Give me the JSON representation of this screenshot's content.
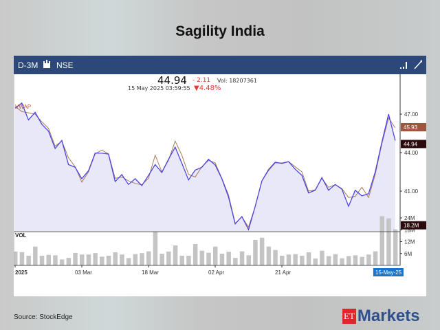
{
  "title": "Sagility India",
  "header": {
    "period": "D-3M",
    "exchange": "NSE",
    "chart_type_icon": "candlestick-icon",
    "bar_icon": "bars-icon",
    "draw_icon": "line-draw-icon"
  },
  "quote": {
    "price": "44.94",
    "change": "- 2.11",
    "volume": "Vol: 18207361",
    "datetime": "15 May 2025 03:59:55",
    "change_pct": "▼4.48%"
  },
  "source": "Source:  StockEdge",
  "logo": {
    "et": "ET",
    "markets": "Markets"
  },
  "colors": {
    "price_line": "#4a44e0",
    "vwap_line": "#a87a5a",
    "fill": "#e8e8f8",
    "header": "#2b4878",
    "vwap_tag": "#a0543c",
    "price_tag": "#2a0a0a",
    "date_tag": "#1a73c9",
    "down": "#e53935"
  },
  "chart_data": {
    "type": "line",
    "price_series": [
      {
        "name": "",
        "values": [
          47.46,
          47.86,
          46.55,
          47.14,
          46.21,
          45.68,
          44.32,
          44.95,
          43.07,
          42.86,
          41.97,
          42.59,
          43.96,
          43.96,
          43.89,
          41.75,
          42.29,
          41.52,
          41.97,
          41.43,
          42.23,
          43.07,
          42.45,
          43.48,
          44.43,
          43.18,
          41.87,
          42.64,
          42.86,
          43.48,
          43.04,
          41.97,
          40.54,
          38.45,
          39.02,
          38.0,
          39.82,
          41.79,
          42.68,
          43.25,
          43.16,
          43.3,
          42.71,
          42.23,
          40.86,
          41.07,
          42.05,
          41.07,
          41.52,
          41.16,
          39.82,
          41.07,
          40.63,
          40.8,
          42.5,
          44.82,
          47.0,
          44.94
        ]
      },
      {
        "name": "VWAP",
        "values": [
          47.6,
          47.2,
          47.1,
          47.0,
          46.4,
          45.9,
          44.5,
          44.9,
          43.6,
          42.9,
          41.7,
          42.5,
          43.9,
          44.2,
          43.9,
          42.0,
          42.1,
          41.8,
          41.6,
          41.5,
          42.0,
          43.8,
          42.5,
          43.4,
          44.9,
          43.8,
          42.3,
          42.1,
          42.9,
          43.4,
          43.2,
          42.0,
          40.7,
          38.5,
          39.0,
          38.2,
          39.8,
          41.8,
          42.6,
          43.2,
          43.2,
          43.3,
          42.9,
          42.5,
          41.0,
          41.1,
          42.0,
          41.3,
          41.5,
          41.2,
          40.5,
          40.6,
          41.3,
          40.5,
          42.3,
          44.7,
          46.7,
          45.93
        ]
      }
    ],
    "volume": {
      "label": "VOL",
      "unit": "M",
      "values": [
        7,
        6.7,
        4.9,
        9.5,
        4.9,
        5.3,
        5.1,
        3,
        3.8,
        6.3,
        5.5,
        5.5,
        6.2,
        4.4,
        4.9,
        6.6,
        5.5,
        3.7,
        5.7,
        6.2,
        7.1,
        17,
        5.9,
        7,
        10.1,
        4.9,
        4.9,
        10.8,
        7.4,
        6.4,
        9.5,
        5.9,
        6.9,
        3.8,
        7.1,
        5.1,
        12.9,
        14,
        9.5,
        7.8,
        4.9,
        5.5,
        5.7,
        4.9,
        6.6,
        3.5,
        7.4,
        4.7,
        5.7,
        3.6,
        4.7,
        5.1,
        4.3,
        5.5,
        7.1,
        24.9,
        23.8,
        18.2
      ]
    },
    "price_ticks": [
      "47.00",
      "44.00",
      "41.00"
    ],
    "price_tick_values": [
      47,
      44,
      41
    ],
    "volume_ticks": [
      "24M",
      "18M",
      "12M",
      "6M"
    ],
    "volume_tick_values": [
      24,
      18,
      12,
      6
    ],
    "x_ticks": [
      {
        "label": "2025",
        "index": 0
      },
      {
        "label": "03 Mar",
        "index": 10
      },
      {
        "label": "18 Mar",
        "index": 20
      },
      {
        "label": "02 Apr",
        "index": 30
      },
      {
        "label": "21 Apr",
        "index": 40
      }
    ],
    "last_date": "15-May-25",
    "vwap_tag": "45.93",
    "price_tag": "44.94",
    "volume_tag": "18.2M",
    "ylim": [
      37.6,
      49.5
    ],
    "grid": false
  }
}
